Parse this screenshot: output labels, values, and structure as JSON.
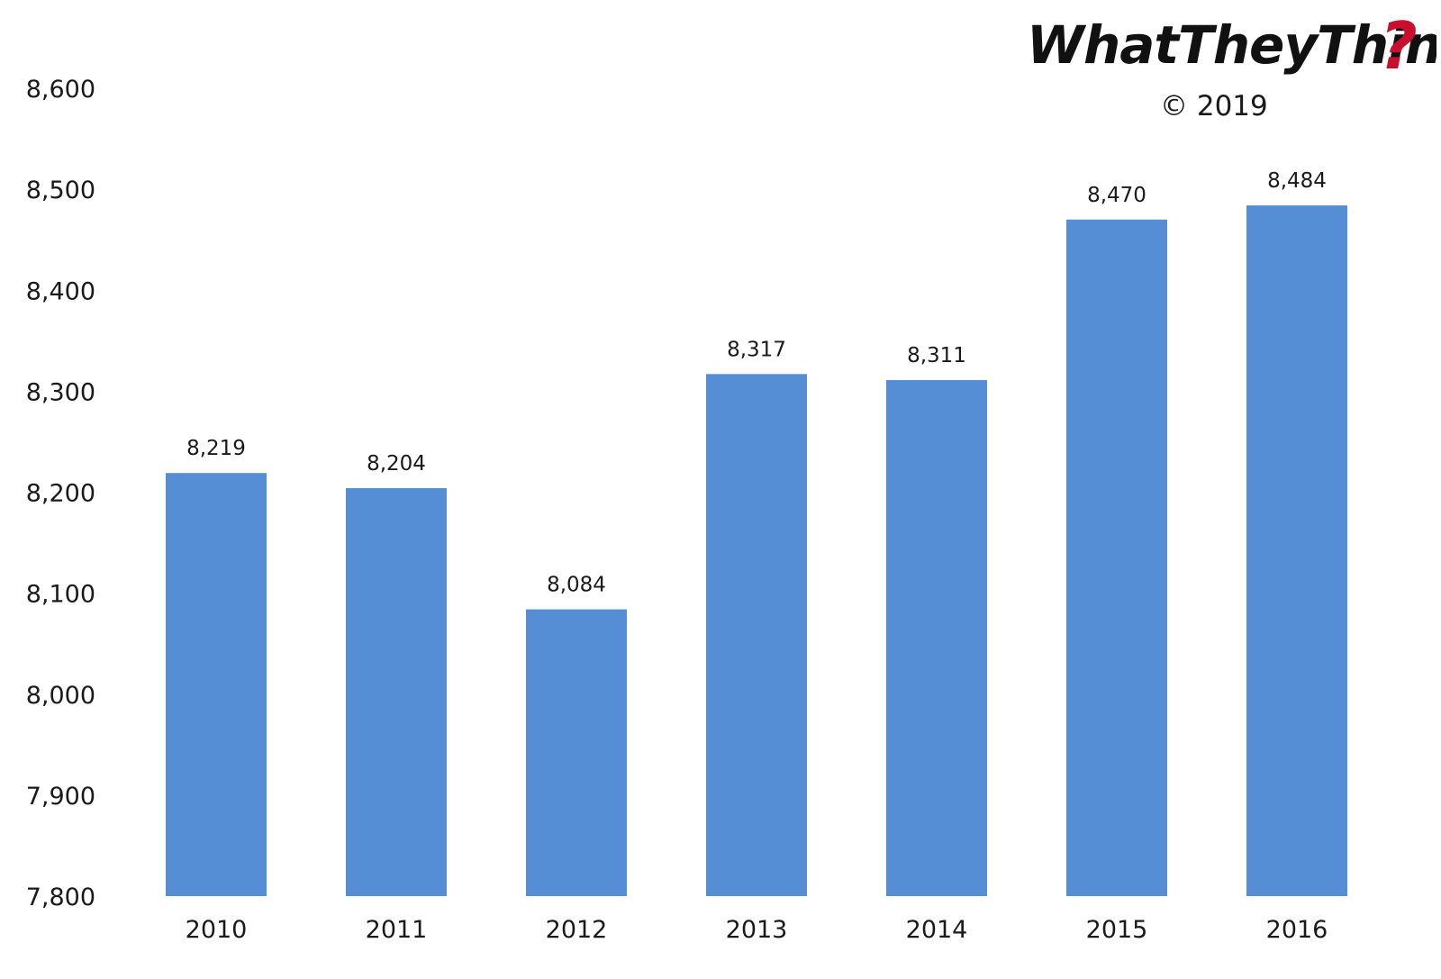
{
  "brand": {
    "logo_text": "WhatTheyThink",
    "logo_mark": "?",
    "mark_color": "#c8102e",
    "copyright": "© 2019"
  },
  "chart_data": {
    "type": "bar",
    "categories": [
      "2010",
      "2011",
      "2012",
      "2013",
      "2014",
      "2015",
      "2016"
    ],
    "values": [
      8219,
      8204,
      8084,
      8317,
      8311,
      8470,
      8484
    ],
    "data_labels": [
      "8,219",
      "8,204",
      "8,084",
      "8,317",
      "8,311",
      "8,470",
      "8,484"
    ],
    "title": "",
    "xlabel": "",
    "ylabel": "",
    "ylim": [
      7800,
      8600
    ],
    "yticks": [
      7800,
      7900,
      8000,
      8100,
      8200,
      8300,
      8400,
      8500,
      8600
    ],
    "ytick_labels": [
      "7,800",
      "7,900",
      "8,000",
      "8,100",
      "8,200",
      "8,300",
      "8,400",
      "8,500",
      "8,600"
    ],
    "bar_color": "#568ed5",
    "grid": false,
    "legend": "none"
  }
}
